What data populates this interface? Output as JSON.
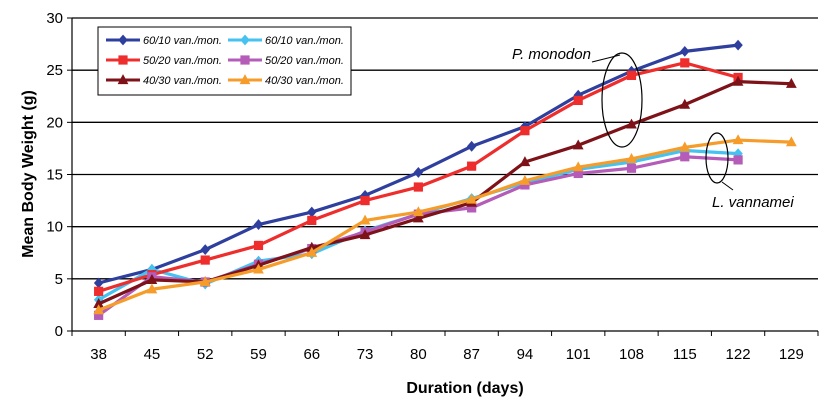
{
  "chart_data": {
    "type": "line",
    "xlabel": "Duration (days)",
    "ylabel": "Mean Body Weight (g)",
    "x": [
      38,
      45,
      52,
      59,
      66,
      73,
      80,
      87,
      94,
      101,
      108,
      115,
      122,
      129
    ],
    "ylim": [
      0,
      30
    ],
    "yticks": [
      0,
      5,
      10,
      15,
      20,
      25,
      30
    ],
    "grid": "horizontal",
    "legend_placement": "top-left",
    "series": [
      {
        "name": "60/10 van./mon.",
        "color": "#2e3f9e",
        "marker": "diamond",
        "values": [
          4.6,
          5.9,
          7.8,
          10.2,
          11.4,
          13.0,
          15.2,
          17.7,
          19.6,
          22.6,
          24.9,
          26.8,
          27.4,
          null
        ]
      },
      {
        "name": "60/10 van./mon.",
        "color": "#45c2f0",
        "marker": "diamond",
        "values": [
          3.0,
          5.9,
          4.5,
          6.7,
          7.4,
          9.6,
          11.2,
          12.7,
          14.2,
          15.5,
          16.2,
          17.3,
          17.0,
          null
        ]
      },
      {
        "name": "50/20 van./mon.",
        "color": "#ee2d2d",
        "marker": "square",
        "values": [
          3.8,
          5.4,
          6.8,
          8.2,
          10.6,
          12.5,
          13.8,
          15.8,
          19.2,
          22.1,
          24.5,
          25.7,
          24.3,
          null
        ]
      },
      {
        "name": "50/20 van./mon.",
        "color": "#b45cb8",
        "marker": "square",
        "values": [
          1.5,
          5.2,
          4.7,
          6.4,
          7.9,
          9.5,
          11.2,
          11.8,
          14.0,
          15.1,
          15.6,
          16.7,
          16.4,
          null
        ]
      },
      {
        "name": "40/30 van./mon.",
        "color": "#7d1219",
        "marker": "triangle",
        "values": [
          2.6,
          4.9,
          4.7,
          6.3,
          8.0,
          9.2,
          10.8,
          12.3,
          16.2,
          17.8,
          19.8,
          21.7,
          23.9,
          23.7
        ]
      },
      {
        "name": "40/30 van./mon.",
        "color": "#f59c2a",
        "marker": "triangle",
        "values": [
          2.0,
          4.0,
          4.7,
          5.9,
          7.5,
          10.6,
          11.4,
          12.6,
          14.4,
          15.7,
          16.5,
          17.6,
          18.3,
          18.1
        ]
      }
    ],
    "annotations": [
      "P. monodon",
      "L. vannamei"
    ]
  }
}
